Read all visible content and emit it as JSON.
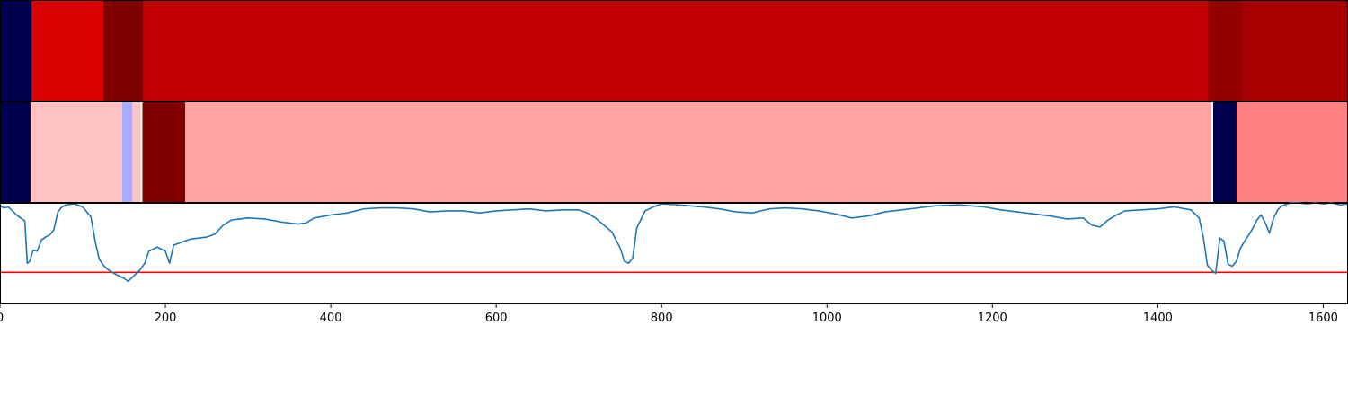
{
  "chart_data": [
    {
      "type": "heatmap",
      "xlim": [
        0,
        1630
      ],
      "colormap": "seismic",
      "segments": [
        {
          "start": 0,
          "end": 38,
          "color": "#000050"
        },
        {
          "start": 38,
          "end": 125,
          "color": "#d80000"
        },
        {
          "start": 125,
          "end": 173,
          "color": "#800000"
        },
        {
          "start": 173,
          "end": 1461,
          "color": "#c00000"
        },
        {
          "start": 1461,
          "end": 1502,
          "color": "#920000"
        },
        {
          "start": 1502,
          "end": 1630,
          "color": "#a60000"
        }
      ]
    },
    {
      "type": "heatmap",
      "xlim": [
        0,
        1630
      ],
      "colormap": "seismic",
      "segments": [
        {
          "start": 0,
          "end": 37,
          "color": "#000050"
        },
        {
          "start": 37,
          "end": 148,
          "color": "#ffc2c2"
        },
        {
          "start": 148,
          "end": 160,
          "color": "#aaaaff"
        },
        {
          "start": 160,
          "end": 170,
          "color": "#ffc2c2"
        },
        {
          "start": 170,
          "end": 172,
          "color": "#ffffff"
        },
        {
          "start": 172,
          "end": 224,
          "color": "#800000"
        },
        {
          "start": 224,
          "end": 1465,
          "color": "#ffa3a3"
        },
        {
          "start": 1465,
          "end": 1467,
          "color": "#ffffff"
        },
        {
          "start": 1467,
          "end": 1495,
          "color": "#000050"
        },
        {
          "start": 1495,
          "end": 1630,
          "color": "#ff8080"
        }
      ]
    },
    {
      "type": "line",
      "xlim": [
        0,
        1630
      ],
      "ylim": [
        0,
        1
      ],
      "line_color": "#1f77b4",
      "threshold": {
        "y": 0.31,
        "color": "#ff0000"
      },
      "x_ticks": [
        0,
        200,
        400,
        600,
        800,
        1000,
        1200,
        1400,
        1600
      ],
      "x_tick_labels": [
        "0",
        "200",
        "400",
        "600",
        "800",
        "1000",
        "1200",
        "1400",
        "1600"
      ],
      "series": [
        {
          "x": [
            0,
            5,
            10,
            15,
            20,
            25,
            30,
            33,
            36,
            40,
            45,
            50,
            55,
            60,
            65,
            70,
            75,
            80,
            90,
            100,
            110,
            115,
            120,
            125,
            130,
            140,
            150,
            155,
            160,
            165,
            170,
            175,
            180,
            190,
            200,
            205,
            210,
            220,
            230,
            240,
            250,
            260,
            270,
            280,
            300,
            320,
            340,
            360,
            370,
            380,
            400,
            420,
            440,
            460,
            480,
            500,
            520,
            540,
            560,
            580,
            600,
            620,
            640,
            660,
            680,
            700,
            710,
            720,
            730,
            740,
            750,
            755,
            760,
            765,
            770,
            780,
            790,
            800,
            820,
            850,
            870,
            890,
            910,
            930,
            950,
            970,
            990,
            1010,
            1030,
            1050,
            1070,
            1100,
            1130,
            1160,
            1190,
            1210,
            1230,
            1250,
            1270,
            1290,
            1310,
            1320,
            1330,
            1340,
            1350,
            1360,
            1380,
            1400,
            1420,
            1440,
            1450,
            1455,
            1460,
            1465,
            1470,
            1475,
            1480,
            1485,
            1490,
            1495,
            1500,
            1505,
            1510,
            1515,
            1520,
            1525,
            1530,
            1535,
            1540,
            1545,
            1550,
            1560,
            1570,
            1580,
            1590,
            1600,
            1610,
            1620,
            1630
          ],
          "y": [
            0.97,
            0.95,
            0.96,
            0.92,
            0.88,
            0.85,
            0.82,
            0.4,
            0.42,
            0.53,
            0.52,
            0.63,
            0.66,
            0.68,
            0.73,
            0.91,
            0.96,
            0.98,
            0.99,
            0.96,
            0.86,
            0.62,
            0.44,
            0.38,
            0.34,
            0.29,
            0.25,
            0.22,
            0.26,
            0.3,
            0.34,
            0.4,
            0.52,
            0.56,
            0.52,
            0.4,
            0.58,
            0.61,
            0.64,
            0.65,
            0.66,
            0.69,
            0.78,
            0.83,
            0.85,
            0.84,
            0.81,
            0.79,
            0.8,
            0.85,
            0.88,
            0.9,
            0.94,
            0.95,
            0.95,
            0.94,
            0.91,
            0.92,
            0.92,
            0.9,
            0.92,
            0.93,
            0.94,
            0.92,
            0.93,
            0.93,
            0.9,
            0.85,
            0.78,
            0.71,
            0.55,
            0.42,
            0.4,
            0.45,
            0.75,
            0.92,
            0.96,
            0.99,
            0.98,
            0.96,
            0.94,
            0.91,
            0.9,
            0.94,
            0.95,
            0.94,
            0.92,
            0.89,
            0.85,
            0.87,
            0.91,
            0.94,
            0.97,
            0.98,
            0.96,
            0.93,
            0.91,
            0.89,
            0.87,
            0.84,
            0.85,
            0.78,
            0.76,
            0.83,
            0.88,
            0.92,
            0.93,
            0.94,
            0.96,
            0.93,
            0.85,
            0.66,
            0.38,
            0.33,
            0.3,
            0.65,
            0.62,
            0.39,
            0.37,
            0.42,
            0.55,
            0.62,
            0.68,
            0.75,
            0.83,
            0.88,
            0.8,
            0.7,
            0.85,
            0.93,
            0.97,
            1.0,
            1.0,
            0.99,
            1.0,
            0.99,
            1.0,
            0.98,
            0.99
          ]
        }
      ]
    }
  ]
}
